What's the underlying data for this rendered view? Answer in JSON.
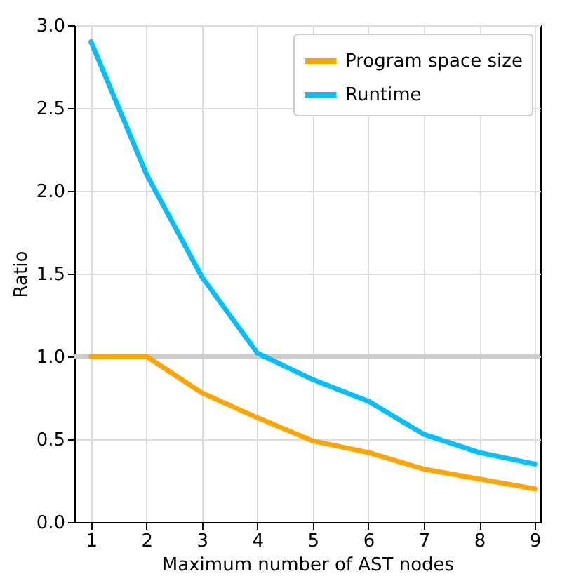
{
  "chart_data": {
    "type": "line",
    "xlabel": "Maximum number of AST nodes",
    "ylabel": "Ratio",
    "x": [
      1,
      2,
      3,
      4,
      5,
      6,
      7,
      8,
      9
    ],
    "series": [
      {
        "name": "Program space size",
        "color": "#ffa500",
        "values": [
          1.0,
          1.0,
          0.78,
          0.63,
          0.49,
          0.42,
          0.32,
          0.26,
          0.2
        ]
      },
      {
        "name": "Runtime",
        "color": "#00bfff",
        "values": [
          2.9,
          2.1,
          1.48,
          1.02,
          0.86,
          0.73,
          0.53,
          0.42,
          0.35
        ]
      }
    ],
    "xlim": [
      0.7,
      9.1
    ],
    "xticks": [
      1,
      2,
      3,
      4,
      5,
      6,
      7,
      8,
      9
    ],
    "ylim": [
      0,
      3
    ],
    "yticks": [
      {
        "value": 0,
        "label": "0.0"
      },
      0.5,
      {
        "value": 1,
        "label": "1.0"
      },
      1.5,
      {
        "value": 2,
        "label": "2.0"
      },
      2.5,
      {
        "value": 3,
        "label": "3.0"
      }
    ],
    "ref_lines": [
      {
        "axis": "y",
        "value": 1,
        "color": "#cccccc"
      }
    ],
    "grid": true,
    "legend": "top right",
    "line_style": "solid"
  }
}
